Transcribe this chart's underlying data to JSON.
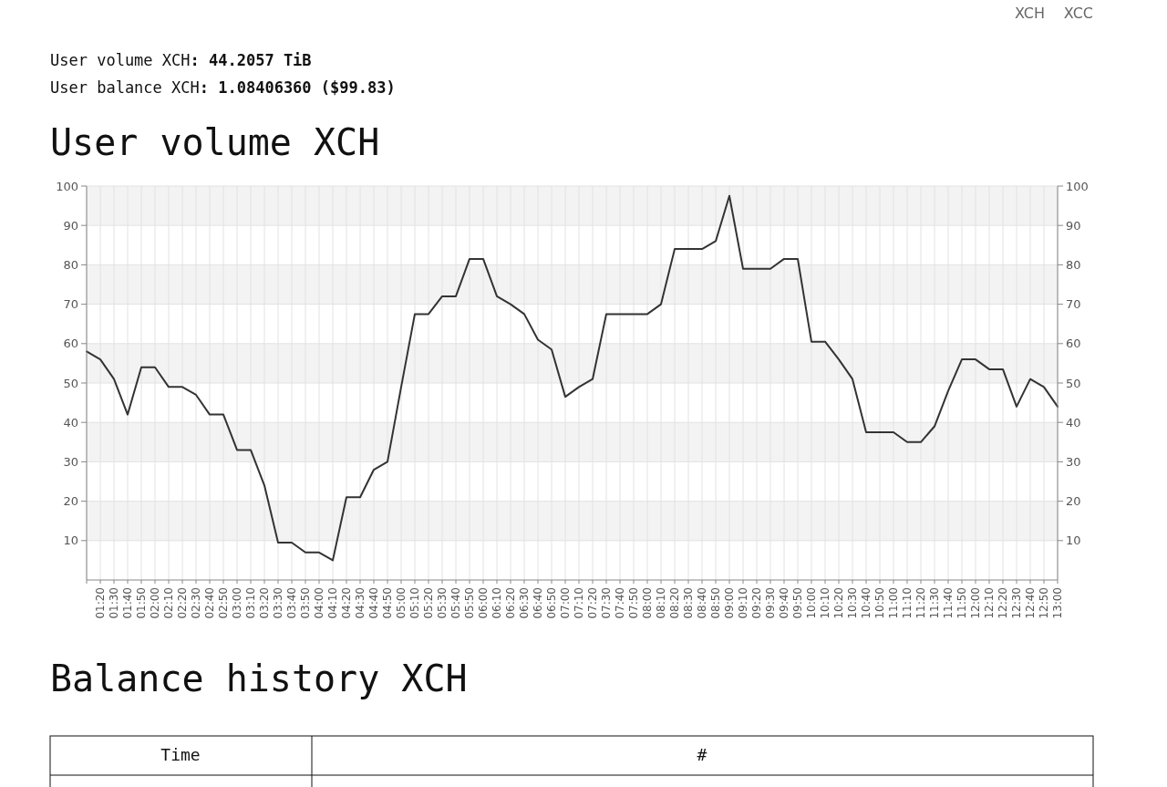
{
  "chart_data": {
    "type": "line",
    "title": "User volume XCH",
    "annotations": [
      "XCH",
      "XCC",
      "User volume XCH: 44.2057 TiB",
      "User balance XCH: 1.08406360 ($99.83)",
      "Balance history XCH",
      "Time",
      "#"
    ],
    "categories": [
      null,
      "01:20",
      "01:30",
      "01:40",
      "01:50",
      "02:00",
      "02:10",
      "02:20",
      "02:30",
      "02:40",
      "02:50",
      "03:00",
      "03:10",
      "03:20",
      "03:30",
      "03:40",
      "03:50",
      "04:00",
      "04:10",
      "04:20",
      "04:30",
      "04:40",
      "04:50",
      "05:00",
      "05:10",
      "05:20",
      "05:30",
      "05:40",
      "05:50",
      "06:00",
      "06:10",
      "06:20",
      "06:30",
      "06:40",
      "06:50",
      "07:00",
      "07:10",
      "07:20",
      "07:30",
      "07:40",
      "07:50",
      "08:00",
      "08:10",
      "08:20",
      "08:30",
      "08:40",
      "08:50",
      "09:00",
      "09:10",
      "09:20",
      "09:30",
      "09:40",
      "09:50",
      "10:00",
      "10:10",
      "10:20",
      "10:30",
      "10:40",
      "10:50",
      "11:00",
      "11:10",
      "11:20",
      "11:30",
      "11:40",
      "11:50",
      "12:00",
      "12:10",
      "12:20",
      "12:30",
      "12:40",
      "12:50",
      "13:00"
    ],
    "series": [
      {
        "color": "#333333",
        "values": [
          58,
          56,
          51,
          42,
          54,
          54,
          49,
          49,
          47,
          42,
          42,
          33,
          33,
          24,
          9.5,
          9.5,
          7,
          7,
          5,
          21,
          21,
          28,
          30,
          49,
          67.5,
          67.5,
          72,
          72,
          81.5,
          81.5,
          72,
          70,
          67.5,
          61,
          58.5,
          46.5,
          49,
          51,
          67.5,
          67.5,
          67.5,
          67.5,
          70,
          84,
          84,
          84,
          86,
          97.5,
          79,
          79,
          79,
          81.5,
          81.5,
          60.5,
          60.5,
          56,
          51,
          37.5,
          37.5,
          37.5,
          35,
          35,
          39,
          48,
          56,
          56,
          53.5,
          53.5,
          44,
          51,
          49,
          44
        ]
      }
    ],
    "ylim": [
      0,
      100
    ],
    "yticks": [
      10,
      20,
      30,
      40,
      50,
      60,
      70,
      80,
      90,
      100
    ],
    "y2lim": [
      0,
      100
    ],
    "y2ticks": [
      10,
      20,
      30,
      40,
      50,
      60,
      70,
      80,
      90,
      100
    ],
    "grid": true,
    "marker": "none",
    "line_style": "solid"
  }
}
